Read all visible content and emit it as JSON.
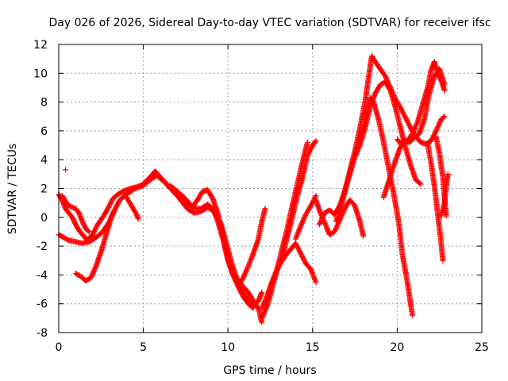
{
  "chart_data": {
    "type": "scatter",
    "title": "Day 026 of 2026, Sidereal Day-to-day VTEC variation (SDTVAR) for receiver ifsc",
    "xlabel": "GPS time / hours",
    "ylabel": "SDTVAR / TECUs",
    "xlim": [
      0,
      25
    ],
    "ylim": [
      -8,
      12
    ],
    "x_ticks": [
      0,
      5,
      10,
      15,
      20,
      25
    ],
    "y_ticks": [
      -8,
      -6,
      -4,
      -2,
      0,
      2,
      4,
      6,
      8,
      10,
      12
    ],
    "grid": true,
    "marker": "+",
    "color": "#ff0000",
    "series": [
      {
        "tracks": [
          [
            [
              0.0,
              1.6
            ],
            [
              0.2,
              1.2
            ],
            [
              0.4,
              0.6
            ],
            [
              0.6,
              0.3
            ],
            [
              0.8,
              0.0
            ],
            [
              1.0,
              -0.5
            ],
            [
              1.2,
              -0.9
            ],
            [
              1.4,
              -1.2
            ],
            [
              1.7,
              -1.6
            ],
            [
              2.0,
              -1.2
            ],
            [
              2.3,
              -0.5
            ],
            [
              2.6,
              0.0
            ],
            [
              2.9,
              0.6
            ],
            [
              3.2,
              1.3
            ],
            [
              3.5,
              1.6
            ],
            [
              3.8,
              1.8
            ],
            [
              4.2,
              2.0
            ],
            [
              4.6,
              2.1
            ],
            [
              5.0,
              2.3
            ],
            [
              5.4,
              2.8
            ],
            [
              5.7,
              3.2
            ],
            [
              6.0,
              2.8
            ],
            [
              6.4,
              2.3
            ],
            [
              6.8,
              1.8
            ],
            [
              7.2,
              1.2
            ],
            [
              7.6,
              0.6
            ],
            [
              8.0,
              0.3
            ],
            [
              8.4,
              0.4
            ],
            [
              8.8,
              0.7
            ],
            [
              9.2,
              0.4
            ],
            [
              9.6,
              -0.5
            ],
            [
              10.0,
              -2.2
            ],
            [
              10.3,
              -3.5
            ],
            [
              10.6,
              -4.5
            ],
            [
              10.9,
              -5.2
            ],
            [
              11.2,
              -5.8
            ],
            [
              11.5,
              -6.1
            ],
            [
              11.8,
              -5.8
            ],
            [
              12.0,
              -5.2
            ]
          ],
          [
            [
              0.0,
              -1.2
            ],
            [
              0.3,
              -1.4
            ],
            [
              0.6,
              -1.6
            ],
            [
              1.0,
              -1.7
            ],
            [
              1.4,
              -1.8
            ],
            [
              1.8,
              -1.7
            ],
            [
              2.2,
              -1.4
            ],
            [
              2.6,
              -1.0
            ],
            [
              3.0,
              -0.3
            ],
            [
              3.3,
              0.5
            ],
            [
              3.6,
              1.2
            ],
            [
              4.0,
              1.6
            ],
            [
              4.5,
              2.0
            ],
            [
              5.0,
              2.2
            ],
            [
              5.4,
              2.6
            ],
            [
              5.8,
              2.9
            ],
            [
              6.2,
              2.5
            ],
            [
              6.6,
              2.0
            ],
            [
              7.0,
              1.5
            ],
            [
              7.4,
              1.0
            ],
            [
              7.8,
              0.6
            ],
            [
              8.2,
              1.2
            ],
            [
              8.5,
              1.8
            ],
            [
              8.8,
              1.9
            ],
            [
              9.1,
              1.3
            ],
            [
              9.4,
              0.3
            ],
            [
              9.7,
              -1.2
            ],
            [
              10.0,
              -2.8
            ],
            [
              10.3,
              -4.0
            ],
            [
              10.6,
              -4.8
            ],
            [
              10.9,
              -5.5
            ],
            [
              11.2,
              -6.0
            ],
            [
              11.5,
              -6.3
            ]
          ],
          [
            [
              1.0,
              -3.9
            ],
            [
              1.3,
              -4.1
            ],
            [
              1.6,
              -4.4
            ],
            [
              1.9,
              -4.2
            ],
            [
              2.2,
              -3.4
            ],
            [
              2.5,
              -2.4
            ],
            [
              2.8,
              -1.2
            ],
            [
              3.1,
              0.0
            ],
            [
              3.3,
              0.5
            ]
          ],
          [
            [
              4.0,
              1.4
            ],
            [
              4.3,
              0.8
            ],
            [
              4.6,
              0.2
            ],
            [
              4.7,
              -0.1
            ]
          ],
          [
            [
              6.6,
              2.2
            ],
            [
              7.0,
              1.8
            ],
            [
              7.4,
              1.4
            ],
            [
              7.7,
              1.0
            ],
            [
              8.0,
              0.6
            ],
            [
              8.4,
              0.6
            ],
            [
              8.8,
              0.9
            ],
            [
              9.1,
              0.6
            ],
            [
              9.4,
              -0.3
            ],
            [
              9.7,
              -1.5
            ],
            [
              10.0,
              -3.0
            ],
            [
              10.3,
              -4.0
            ],
            [
              10.6,
              -4.4
            ],
            [
              10.9,
              -4.8
            ],
            [
              11.2,
              -5.2
            ],
            [
              11.5,
              -5.8
            ],
            [
              11.8,
              -6.3
            ],
            [
              12.0,
              -7.3
            ]
          ],
          [
            [
              10.6,
              -4.8
            ],
            [
              10.9,
              -4.2
            ],
            [
              11.2,
              -3.4
            ],
            [
              11.5,
              -2.5
            ],
            [
              11.8,
              -1.5
            ],
            [
              12.0,
              -0.3
            ],
            [
              12.2,
              0.6
            ]
          ],
          [
            [
              12.0,
              -7.0
            ],
            [
              12.3,
              -6.2
            ],
            [
              12.6,
              -5.0
            ],
            [
              12.9,
              -3.6
            ],
            [
              13.2,
              -2.2
            ],
            [
              13.5,
              -0.8
            ],
            [
              13.8,
              0.8
            ],
            [
              14.1,
              2.3
            ],
            [
              14.4,
              3.8
            ],
            [
              14.7,
              5.2
            ]
          ],
          [
            [
              12.0,
              -6.3
            ],
            [
              12.3,
              -5.5
            ],
            [
              12.6,
              -4.5
            ],
            [
              12.9,
              -3.6
            ],
            [
              13.2,
              -3.0
            ],
            [
              13.5,
              -2.5
            ],
            [
              13.8,
              -2.1
            ],
            [
              14.0,
              -1.8
            ],
            [
              14.3,
              -2.5
            ],
            [
              14.6,
              -3.2
            ],
            [
              14.9,
              -3.6
            ],
            [
              15.2,
              -4.5
            ]
          ],
          [
            [
              12.4,
              -5.2
            ],
            [
              12.8,
              -4.0
            ],
            [
              13.2,
              -2.8
            ],
            [
              13.5,
              -1.4
            ],
            [
              13.8,
              0.0
            ],
            [
              14.1,
              1.5
            ],
            [
              14.4,
              2.7
            ],
            [
              14.7,
              4.3
            ],
            [
              15.0,
              5.0
            ],
            [
              15.2,
              5.3
            ]
          ],
          [
            [
              14.0,
              -1.5
            ],
            [
              14.3,
              -0.6
            ],
            [
              14.6,
              0.2
            ],
            [
              14.9,
              0.8
            ],
            [
              15.2,
              1.5
            ]
          ],
          [
            [
              15.2,
              1.2
            ],
            [
              15.5,
              0.2
            ],
            [
              15.8,
              -0.6
            ],
            [
              16.0,
              -1.2
            ],
            [
              16.3,
              -1.0
            ],
            [
              16.6,
              -0.2
            ],
            [
              16.9,
              0.6
            ],
            [
              17.2,
              1.2
            ],
            [
              17.5,
              0.8
            ],
            [
              17.8,
              -0.3
            ],
            [
              18.0,
              -1.3
            ]
          ],
          [
            [
              15.4,
              -0.5
            ],
            [
              15.7,
              0.3
            ],
            [
              16.0,
              0.5
            ],
            [
              16.3,
              0.2
            ],
            [
              16.6,
              0.8
            ],
            [
              16.9,
              1.8
            ],
            [
              17.2,
              3.2
            ],
            [
              17.5,
              4.6
            ],
            [
              17.8,
              6.2
            ],
            [
              18.1,
              8.0
            ],
            [
              18.3,
              9.6
            ],
            [
              18.5,
              11.2
            ],
            [
              18.7,
              10.8
            ],
            [
              19.0,
              10.3
            ],
            [
              19.3,
              9.8
            ],
            [
              19.6,
              9.0
            ],
            [
              19.9,
              8.2
            ],
            [
              20.2,
              7.6
            ],
            [
              20.5,
              6.9
            ],
            [
              20.8,
              6.2
            ],
            [
              21.1,
              5.6
            ],
            [
              21.4,
              5.2
            ],
            [
              21.7,
              5.1
            ],
            [
              22.0,
              5.3
            ],
            [
              22.3,
              6.0
            ],
            [
              22.6,
              6.8
            ],
            [
              22.8,
              7.0
            ]
          ],
          [
            [
              16.4,
              -0.3
            ],
            [
              16.7,
              0.8
            ],
            [
              17.0,
              2.2
            ],
            [
              17.3,
              3.4
            ],
            [
              17.6,
              4.6
            ],
            [
              17.9,
              5.8
            ],
            [
              18.2,
              7.2
            ],
            [
              18.4,
              8.3
            ],
            [
              18.6,
              8.0
            ],
            [
              18.9,
              6.8
            ],
            [
              19.2,
              5.2
            ],
            [
              19.5,
              3.4
            ],
            [
              19.8,
              1.6
            ],
            [
              20.1,
              -0.4
            ],
            [
              20.3,
              -2.5
            ],
            [
              20.6,
              -4.5
            ],
            [
              20.9,
              -6.8
            ]
          ],
          [
            [
              17.5,
              4.2
            ],
            [
              17.8,
              5.0
            ],
            [
              18.1,
              6.2
            ],
            [
              18.4,
              7.6
            ],
            [
              18.7,
              8.6
            ],
            [
              19.0,
              9.2
            ],
            [
              19.3,
              9.4
            ],
            [
              19.6,
              8.8
            ],
            [
              19.9,
              7.6
            ],
            [
              20.2,
              6.2
            ],
            [
              20.5,
              4.8
            ],
            [
              20.8,
              3.6
            ],
            [
              21.1,
              2.6
            ],
            [
              21.4,
              2.3
            ]
          ],
          [
            [
              19.2,
              1.4
            ],
            [
              19.5,
              2.5
            ],
            [
              19.8,
              3.6
            ],
            [
              20.1,
              4.6
            ],
            [
              20.4,
              5.4
            ],
            [
              20.7,
              5.2
            ],
            [
              21.0,
              5.5
            ],
            [
              21.3,
              5.8
            ],
            [
              21.6,
              6.8
            ],
            [
              21.9,
              8.6
            ],
            [
              22.2,
              9.8
            ],
            [
              22.5,
              10.3
            ],
            [
              22.8,
              9.2
            ]
          ],
          [
            [
              20.0,
              5.4
            ],
            [
              20.3,
              5.0
            ],
            [
              20.6,
              5.3
            ],
            [
              20.9,
              5.8
            ],
            [
              21.2,
              6.6
            ],
            [
              21.5,
              7.8
            ],
            [
              21.8,
              9.0
            ],
            [
              22.0,
              10.2
            ],
            [
              22.2,
              10.8
            ],
            [
              22.4,
              10.0
            ],
            [
              22.6,
              9.5
            ],
            [
              22.8,
              8.8
            ]
          ],
          [
            [
              21.8,
              5.1
            ],
            [
              22.0,
              3.8
            ],
            [
              22.2,
              2.2
            ],
            [
              22.4,
              0.2
            ],
            [
              22.6,
              -1.8
            ],
            [
              22.7,
              -3.0
            ]
          ],
          [
            [
              22.6,
              0.1
            ],
            [
              22.8,
              1.0
            ],
            [
              22.9,
              2.2
            ],
            [
              23.0,
              3.0
            ]
          ],
          [
            [
              22.3,
              5.6
            ],
            [
              22.5,
              4.4
            ],
            [
              22.7,
              2.8
            ],
            [
              22.8,
              1.4
            ],
            [
              22.9,
              0.1
            ]
          ],
          [
            [
              0.2,
              1.5
            ],
            [
              0.4,
              1.1
            ],
            [
              0.6,
              0.8
            ],
            [
              0.8,
              0.7
            ],
            [
              1.0,
              0.6
            ],
            [
              1.2,
              0.3
            ],
            [
              1.4,
              -0.3
            ],
            [
              1.6,
              -0.8
            ],
            [
              1.8,
              -1.0
            ]
          ],
          [
            [
              0.4,
              3.3
            ]
          ]
        ]
      }
    ]
  }
}
